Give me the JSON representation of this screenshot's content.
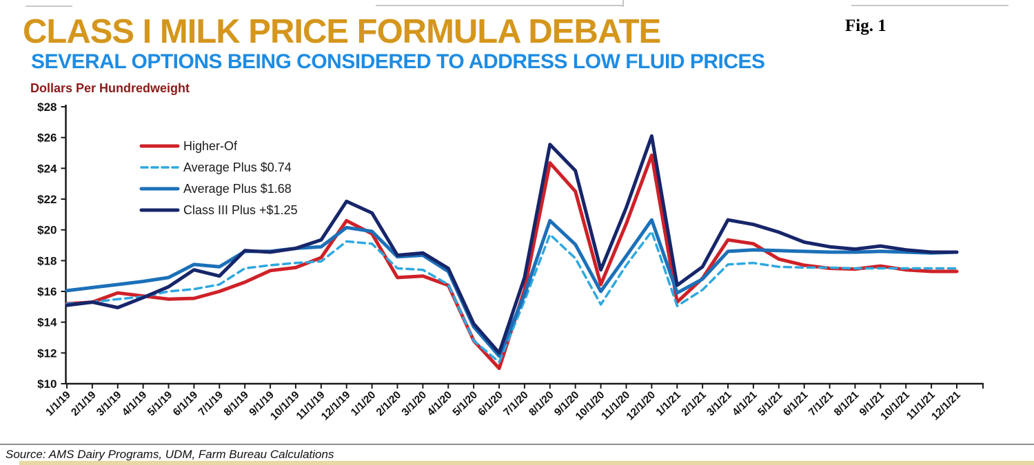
{
  "header": {
    "title": "CLASS I MILK PRICE FORMULA DEBATE",
    "title_color": "#D4961C",
    "subtitle": "SEVERAL OPTIONS BEING CONSIDERED TO ADDRESS LOW FLUID PRICES",
    "subtitle_color": "#1E8CE3",
    "fig_label": "Fig. 1",
    "axis_title": "Dollars Per Hundredweight",
    "axis_title_color": "#8B1A1A"
  },
  "footer": {
    "source": "Source: AMS Dairy Programs, UDM, Farm Bureau Calculations"
  },
  "chart_data": {
    "type": "line",
    "title": "Class I Milk Price Formula Debate",
    "ylabel": "Dollars Per Hundredweight",
    "ylim": [
      10,
      28
    ],
    "ytick_step": 2,
    "ytick_labels": [
      "$10",
      "$12",
      "$14",
      "$16",
      "$18",
      "$20",
      "$22",
      "$24",
      "$26",
      "$28"
    ],
    "grid": false,
    "legend_position": "top-left-inside",
    "x": [
      "1/1/19",
      "2/1/19",
      "3/1/19",
      "4/1/19",
      "5/1/19",
      "6/1/19",
      "7/1/19",
      "8/1/19",
      "9/1/19",
      "10/1/19",
      "11/1/19",
      "12/1/19",
      "1/1/20",
      "2/1/20",
      "3/1/20",
      "4/1/20",
      "5/1/20",
      "6/1/20",
      "7/1/20",
      "8/1/20",
      "9/1/20",
      "10/1/20",
      "11/1/20",
      "12/1/20",
      "1/1/21",
      "2/1/21",
      "3/1/21",
      "4/1/21",
      "5/1/21",
      "6/1/21",
      "7/1/21",
      "8/1/21",
      "9/1/21",
      "10/1/21",
      "11/1/21",
      "12/1/21"
    ],
    "series": [
      {
        "name": "Higher-Of",
        "color": "#CF2128",
        "style": "solid",
        "width": 5,
        "values": [
          15.2,
          15.3,
          15.9,
          15.7,
          15.5,
          15.55,
          16.0,
          16.6,
          17.35,
          17.55,
          18.2,
          20.6,
          19.75,
          16.9,
          17.0,
          16.4,
          12.8,
          11.0,
          16.1,
          24.35,
          22.5,
          16.45,
          20.4,
          24.85,
          15.3,
          16.85,
          19.35,
          19.1,
          18.1,
          17.7,
          17.5,
          17.45,
          17.65,
          17.4,
          17.3,
          17.3
        ]
      },
      {
        "name": "Average Plus $0.74",
        "color": "#2FA8DF",
        "style": "dashed",
        "width": 3.5,
        "values": [
          15.2,
          15.3,
          15.5,
          15.65,
          16.0,
          16.15,
          16.45,
          17.5,
          17.7,
          17.85,
          17.95,
          19.25,
          19.1,
          17.5,
          17.4,
          16.45,
          12.8,
          11.4,
          15.4,
          19.7,
          18.15,
          15.15,
          17.7,
          19.9,
          15.05,
          16.1,
          17.75,
          17.85,
          17.6,
          17.55,
          17.55,
          17.5,
          17.5,
          17.5,
          17.5,
          17.5
        ]
      },
      {
        "name": "Average Plus $1.68",
        "color": "#1C70B8",
        "style": "solid",
        "width": 5,
        "values": [
          16.05,
          16.25,
          16.45,
          16.65,
          16.9,
          17.75,
          17.6,
          18.6,
          18.6,
          18.8,
          18.9,
          20.15,
          19.9,
          18.25,
          18.35,
          17.3,
          13.7,
          11.8,
          15.8,
          20.6,
          19.05,
          16.0,
          18.3,
          20.65,
          15.9,
          16.8,
          18.6,
          18.7,
          18.65,
          18.6,
          18.55,
          18.55,
          18.6,
          18.55,
          18.5,
          18.55
        ]
      },
      {
        "name": "Class III Plus +$1.25",
        "color": "#17266A",
        "style": "solid",
        "width": 5,
        "values": [
          15.1,
          15.3,
          14.95,
          15.6,
          16.3,
          17.4,
          17.0,
          18.65,
          18.55,
          18.8,
          19.35,
          21.85,
          21.1,
          18.35,
          18.5,
          17.5,
          13.9,
          12.0,
          16.9,
          25.55,
          23.85,
          17.4,
          21.45,
          26.1,
          16.4,
          17.6,
          20.65,
          20.35,
          19.85,
          19.2,
          18.9,
          18.75,
          18.95,
          18.7,
          18.55,
          18.55
        ]
      }
    ]
  }
}
